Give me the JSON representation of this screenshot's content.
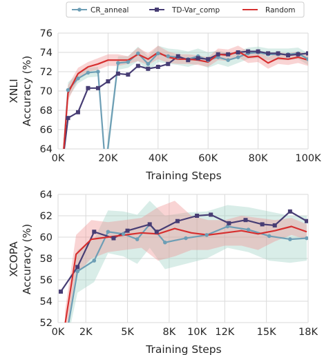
{
  "colors": {
    "CR_anneal": "#6d9eb5",
    "TD-Var_comp": "#473d74",
    "Random": "#d62f2f",
    "band_CR_anneal": "#9ccfc3",
    "band_Random": "#ee8e8e",
    "grid": "#dadada"
  },
  "legend": {
    "placement": "top-center",
    "entries": [
      "CR_anneal",
      "TD-Var_comp",
      "Random"
    ]
  },
  "chart_data": [
    {
      "type": "line",
      "xlabel": "Training Steps",
      "ylabel_line1": "XNLI",
      "ylabel_line2": "Accuracy (%)",
      "xlim": [
        0,
        100000
      ],
      "ylim": [
        64,
        76
      ],
      "grid": true,
      "x_ticks": [
        0,
        20000,
        40000,
        60000,
        80000,
        100000
      ],
      "x_tick_labels": [
        "0K",
        "20K",
        "40K",
        "60K",
        "80K",
        "100K"
      ],
      "y_ticks": [
        64,
        66,
        68,
        70,
        72,
        74,
        76
      ],
      "y_tick_labels": [
        "64",
        "66",
        "68",
        "70",
        "72",
        "74",
        "76"
      ],
      "series": [
        {
          "name": "CR_anneal",
          "marker": "circle",
          "x": [
            2000,
            4000,
            8000,
            12000,
            16000,
            19000,
            24000,
            28000,
            32000,
            36000,
            40000,
            44000,
            48000,
            52000,
            56000,
            60000,
            64000,
            68000,
            72000,
            76000,
            80000,
            84000,
            88000,
            92000,
            96000,
            100000
          ],
          "y": [
            63.0,
            70.1,
            71.3,
            71.9,
            72.0,
            62.0,
            72.9,
            73.0,
            73.9,
            72.8,
            73.9,
            73.6,
            73.5,
            73.3,
            73.6,
            73.2,
            73.5,
            73.2,
            73.5,
            73.9,
            74.0,
            73.8,
            73.8,
            73.8,
            73.9,
            73.3
          ],
          "band_low": [
            62.5,
            69.3,
            70.8,
            71.4,
            71.5,
            61.0,
            72.2,
            72.4,
            73.1,
            72.0,
            73.0,
            72.8,
            72.7,
            72.5,
            72.8,
            72.4,
            72.8,
            72.5,
            72.9,
            73.3,
            73.4,
            73.2,
            73.2,
            73.2,
            73.3,
            72.7
          ],
          "band_high": [
            63.5,
            70.9,
            71.8,
            72.4,
            72.5,
            63.0,
            73.6,
            73.6,
            74.6,
            73.6,
            74.7,
            74.4,
            74.3,
            74.1,
            74.4,
            74.0,
            74.2,
            73.9,
            74.1,
            74.5,
            74.6,
            74.4,
            74.4,
            74.4,
            74.5,
            73.9
          ]
        },
        {
          "name": "TD-Var_comp",
          "marker": "square",
          "x": [
            2000,
            4000,
            8000,
            12000,
            16000,
            20000,
            24000,
            28000,
            32000,
            36000,
            40000,
            44000,
            48000,
            52000,
            56000,
            60000,
            64000,
            68000,
            72000,
            76000,
            80000,
            84000,
            88000,
            92000,
            96000,
            100000
          ],
          "y": [
            63.0,
            67.2,
            67.8,
            70.3,
            70.3,
            71.0,
            71.8,
            71.7,
            72.6,
            72.3,
            72.5,
            72.8,
            73.6,
            73.2,
            73.4,
            73.3,
            73.8,
            73.8,
            74.0,
            74.1,
            74.1,
            73.9,
            73.9,
            73.7,
            73.8,
            73.9
          ]
        },
        {
          "name": "Random",
          "x": [
            2000,
            4000,
            8000,
            12000,
            16000,
            20000,
            24000,
            28000,
            32000,
            36000,
            40000,
            44000,
            48000,
            52000,
            56000,
            60000,
            64000,
            68000,
            72000,
            76000,
            80000,
            84000,
            88000,
            92000,
            96000,
            100000
          ],
          "y": [
            63.0,
            69.8,
            71.8,
            72.5,
            72.8,
            73.2,
            73.2,
            73.2,
            73.8,
            73.3,
            74.0,
            73.5,
            73.3,
            73.3,
            73.2,
            73.0,
            73.8,
            73.7,
            74.1,
            73.5,
            73.6,
            72.9,
            73.4,
            73.3,
            73.5,
            73.2
          ],
          "band_low": [
            62.5,
            69.0,
            71.2,
            72.0,
            72.2,
            72.6,
            72.6,
            72.8,
            73.1,
            72.7,
            73.3,
            72.9,
            72.8,
            72.8,
            72.7,
            72.5,
            73.2,
            73.1,
            73.5,
            72.9,
            73.0,
            72.3,
            72.8,
            72.7,
            72.9,
            72.6
          ],
          "band_high": [
            63.5,
            70.6,
            72.4,
            73.0,
            73.4,
            73.8,
            73.8,
            73.6,
            74.5,
            73.9,
            74.7,
            74.1,
            73.8,
            73.8,
            73.7,
            73.5,
            74.4,
            74.3,
            74.7,
            74.1,
            74.2,
            73.5,
            74.0,
            73.9,
            74.1,
            73.8
          ]
        }
      ]
    },
    {
      "type": "line",
      "xlabel": "Training Steps",
      "ylabel_line1": "XCOPA",
      "ylabel_line2": "Accuracy (%)",
      "xlim": [
        0,
        18000
      ],
      "ylim": [
        52,
        64
      ],
      "grid": true,
      "x_ticks": [
        0,
        2000,
        5000,
        8000,
        10000,
        12000,
        15000,
        18000
      ],
      "x_tick_labels": [
        "0K",
        "2K",
        "5K",
        "8K",
        "10K",
        "12K",
        "15K",
        "18K"
      ],
      "y_ticks": [
        52,
        54,
        56,
        58,
        60,
        62,
        64
      ],
      "y_tick_labels": [
        "52",
        "54",
        "56",
        "58",
        "60",
        "62",
        "64"
      ],
      "series": [
        {
          "name": "CR_anneal",
          "marker": "circle",
          "x": [
            700,
            1400,
            2600,
            3600,
            4700,
            5700,
            6600,
            7700,
            9200,
            10700,
            12200,
            13700,
            15200,
            16700,
            17900
          ],
          "y": [
            51.5,
            56.8,
            57.8,
            60.5,
            60.3,
            59.8,
            61.2,
            59.5,
            59.9,
            60.2,
            61.0,
            60.7,
            60.1,
            59.8,
            59.9
          ],
          "band_low": [
            50.5,
            54.8,
            55.8,
            58.5,
            58.2,
            57.5,
            59.0,
            57.0,
            57.5,
            58.0,
            59.0,
            58.6,
            57.8,
            57.6,
            57.8
          ],
          "band_high": [
            52.5,
            58.8,
            59.8,
            62.5,
            62.4,
            62.1,
            63.4,
            62.0,
            62.3,
            62.4,
            63.0,
            62.8,
            62.4,
            62.0,
            62.0
          ]
        },
        {
          "name": "TD-Var_comp",
          "marker": "square",
          "x": [
            200,
            1400,
            2600,
            4000,
            5000,
            6600,
            7100,
            8600,
            10000,
            11000,
            12300,
            13500,
            14700,
            15600,
            16700,
            17900
          ],
          "y": [
            54.9,
            57.2,
            60.5,
            59.9,
            60.6,
            61.2,
            60.5,
            61.5,
            62.0,
            62.1,
            61.3,
            61.6,
            61.2,
            61.1,
            62.4,
            61.5
          ]
        },
        {
          "name": "Random",
          "x": [
            500,
            1300,
            2400,
            3600,
            4800,
            6000,
            7200,
            8400,
            9600,
            10800,
            12000,
            13200,
            14400,
            15600,
            16800,
            17900
          ],
          "y": [
            51.8,
            58.4,
            59.8,
            60.0,
            60.2,
            60.4,
            60.3,
            60.8,
            60.4,
            60.2,
            60.4,
            60.6,
            60.3,
            60.6,
            61.0,
            60.5
          ],
          "band_low": [
            50.5,
            56.5,
            58.0,
            58.6,
            58.8,
            59.0,
            57.8,
            58.2,
            58.8,
            58.8,
            59.2,
            59.2,
            58.8,
            59.6,
            60.2,
            59.8
          ],
          "band_high": [
            53.1,
            60.2,
            61.6,
            61.4,
            61.6,
            61.8,
            62.8,
            63.4,
            62.0,
            61.6,
            61.6,
            62.0,
            61.8,
            61.6,
            61.8,
            61.2
          ]
        }
      ]
    }
  ]
}
